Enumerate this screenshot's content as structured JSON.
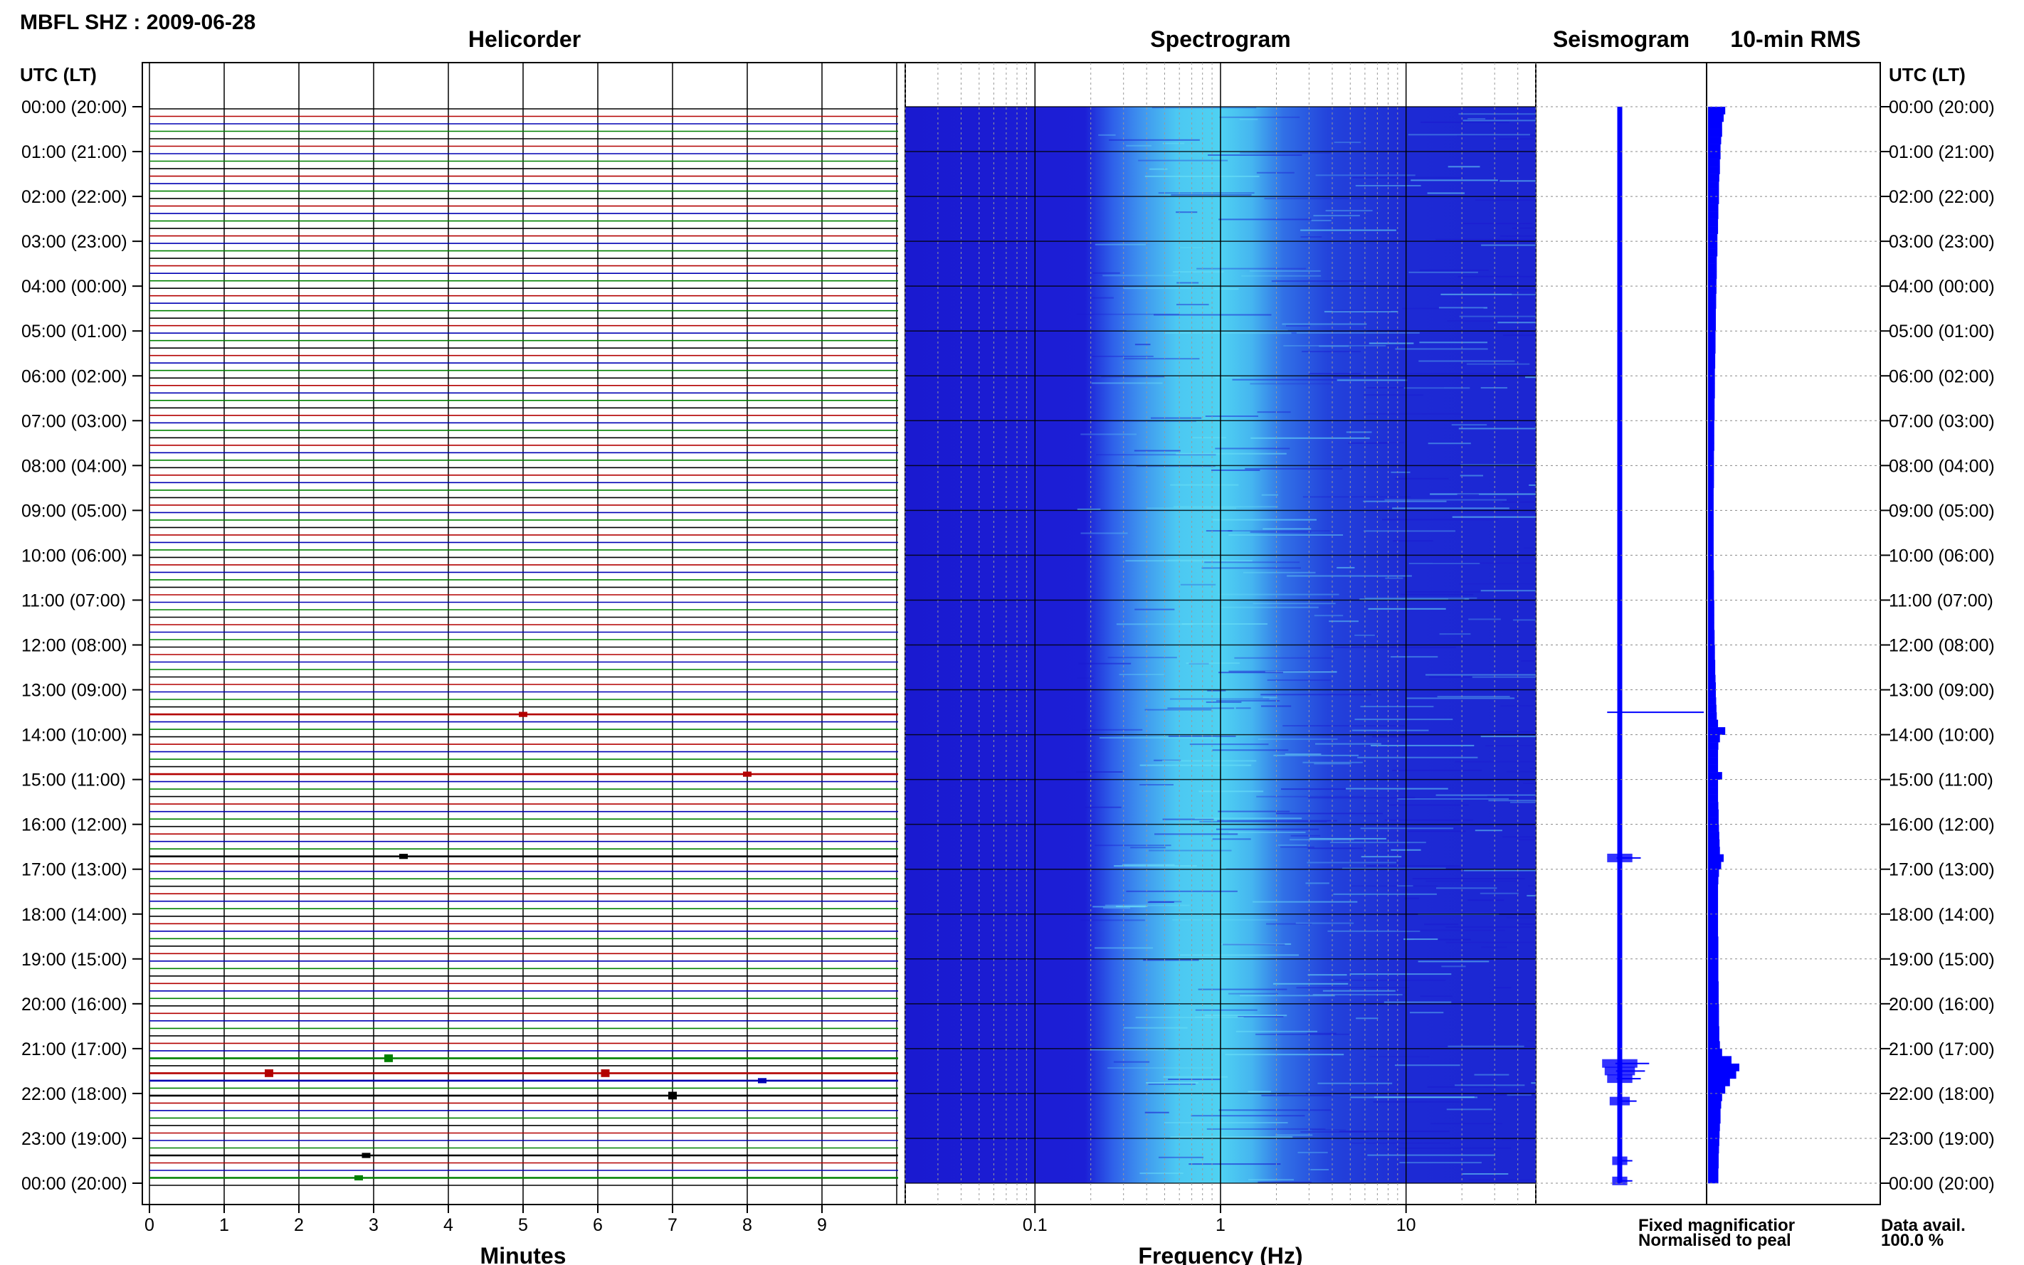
{
  "title": "MBFL SHZ : 2009-06-28",
  "time_axis_label": "UTC (LT)",
  "panels": {
    "helicorder": "Helicorder",
    "spectrogram": "Spectrogram",
    "seismogram": "Seismogram",
    "rms": "10-min RMS"
  },
  "time_ticks": [
    "00:00 (20:00)",
    "01:00 (21:00)",
    "02:00 (22:00)",
    "03:00 (23:00)",
    "04:00 (00:00)",
    "05:00 (01:00)",
    "06:00 (02:00)",
    "07:00 (03:00)",
    "08:00 (04:00)",
    "09:00 (05:00)",
    "10:00 (06:00)",
    "11:00 (07:00)",
    "12:00 (08:00)",
    "13:00 (09:00)",
    "14:00 (10:00)",
    "15:00 (11:00)",
    "16:00 (12:00)",
    "17:00 (13:00)",
    "18:00 (14:00)",
    "19:00 (15:00)",
    "20:00 (16:00)",
    "21:00 (17:00)",
    "22:00 (18:00)",
    "23:00 (19:00)",
    "00:00 (20:00)"
  ],
  "legend": {
    "fixed": "Fixed magnificatior",
    "normalised": "Normalised to peal",
    "fixed_color": "#0000ff",
    "normalised_color": "#ff0000"
  },
  "data_avail": {
    "label": "Data avail.",
    "value": "100.0 %"
  },
  "colors": {
    "trace_colors": [
      "#000000",
      "#b30000",
      "#0000b3",
      "#008000"
    ],
    "spectrogram_dark": "#1a1ad0",
    "spectrogram_bright": "#4fd2f2",
    "seismogram": "#0000ff",
    "rms": "#0000ff"
  },
  "chart_data": [
    {
      "type": "line",
      "panel": "helicorder",
      "xlabel": "Minutes",
      "xlim": [
        0,
        10
      ],
      "x_ticks": [
        "0",
        "1",
        "2",
        "3",
        "4",
        "5",
        "6",
        "7",
        "8",
        "9"
      ],
      "ylim_hours": [
        0,
        24
      ],
      "lines_per_hour": 6,
      "events": [
        {
          "hour": 13.5,
          "minute": 5.0,
          "amplitude": 2
        },
        {
          "hour": 14.83,
          "minute": 8.0,
          "amplitude": 2
        },
        {
          "hour": 16.67,
          "minute": 3.4,
          "amplitude": 2
        },
        {
          "hour": 21.17,
          "minute": 3.2,
          "amplitude": 3
        },
        {
          "hour": 21.5,
          "minute": 1.6,
          "amplitude": 3
        },
        {
          "hour": 21.5,
          "minute": 6.1,
          "amplitude": 3
        },
        {
          "hour": 21.67,
          "minute": 8.2,
          "amplitude": 2
        },
        {
          "hour": 22.0,
          "minute": 7.0,
          "amplitude": 3
        },
        {
          "hour": 23.33,
          "minute": 2.9,
          "amplitude": 2
        },
        {
          "hour": 23.83,
          "minute": 2.8,
          "amplitude": 2
        }
      ]
    },
    {
      "type": "heatmap",
      "panel": "spectrogram",
      "xlabel": "Frequency (Hz)",
      "x_scale": "log",
      "xlim": [
        0.02,
        50
      ],
      "x_ticks": [
        "0.1",
        "1",
        "10"
      ],
      "bright_band_hz": [
        0.4,
        1.6
      ],
      "ylim_hours": [
        0,
        24
      ]
    },
    {
      "type": "line",
      "panel": "seismogram",
      "ylim_hours": [
        0,
        24
      ],
      "spikes": [
        {
          "hour": 13.5,
          "amplitude": 1.0
        },
        {
          "hour": 16.75,
          "amplitude": 0.25
        },
        {
          "hour": 21.33,
          "amplitude": 0.35
        },
        {
          "hour": 21.5,
          "amplitude": 0.3
        },
        {
          "hour": 21.67,
          "amplitude": 0.25
        },
        {
          "hour": 22.17,
          "amplitude": 0.2
        },
        {
          "hour": 23.5,
          "amplitude": 0.15
        },
        {
          "hour": 23.95,
          "amplitude": 0.15
        }
      ]
    },
    {
      "type": "bar",
      "panel": "rms",
      "orientation": "horizontal",
      "bin_minutes": 10,
      "ylim_hours": [
        0,
        24
      ],
      "values": [
        0.55,
        0.5,
        0.45,
        0.45,
        0.42,
        0.4,
        0.4,
        0.38,
        0.38,
        0.36,
        0.35,
        0.35,
        0.35,
        0.33,
        0.33,
        0.32,
        0.32,
        0.3,
        0.3,
        0.3,
        0.28,
        0.28,
        0.28,
        0.27,
        0.27,
        0.26,
        0.26,
        0.25,
        0.25,
        0.25,
        0.24,
        0.24,
        0.24,
        0.23,
        0.23,
        0.22,
        0.22,
        0.22,
        0.22,
        0.21,
        0.21,
        0.21,
        0.2,
        0.2,
        0.2,
        0.2,
        0.19,
        0.19,
        0.19,
        0.19,
        0.19,
        0.18,
        0.18,
        0.18,
        0.18,
        0.18,
        0.18,
        0.18,
        0.18,
        0.18,
        0.18,
        0.18,
        0.19,
        0.19,
        0.19,
        0.19,
        0.2,
        0.2,
        0.2,
        0.2,
        0.21,
        0.21,
        0.22,
        0.22,
        0.23,
        0.23,
        0.24,
        0.25,
        0.25,
        0.26,
        0.27,
        0.28,
        0.32,
        0.55,
        0.38,
        0.33,
        0.32,
        0.32,
        0.32,
        0.45,
        0.32,
        0.32,
        0.32,
        0.33,
        0.34,
        0.34,
        0.35,
        0.36,
        0.37,
        0.38,
        0.5,
        0.42,
        0.35,
        0.33,
        0.32,
        0.32,
        0.32,
        0.32,
        0.32,
        0.32,
        0.32,
        0.33,
        0.33,
        0.33,
        0.33,
        0.33,
        0.33,
        0.34,
        0.34,
        0.34,
        0.35,
        0.35,
        0.35,
        0.36,
        0.36,
        0.38,
        0.45,
        0.75,
        1.0,
        0.9,
        0.7,
        0.55,
        0.45,
        0.42,
        0.4,
        0.4,
        0.38,
        0.37,
        0.36,
        0.35,
        0.34,
        0.34,
        0.33,
        0.33
      ]
    }
  ]
}
